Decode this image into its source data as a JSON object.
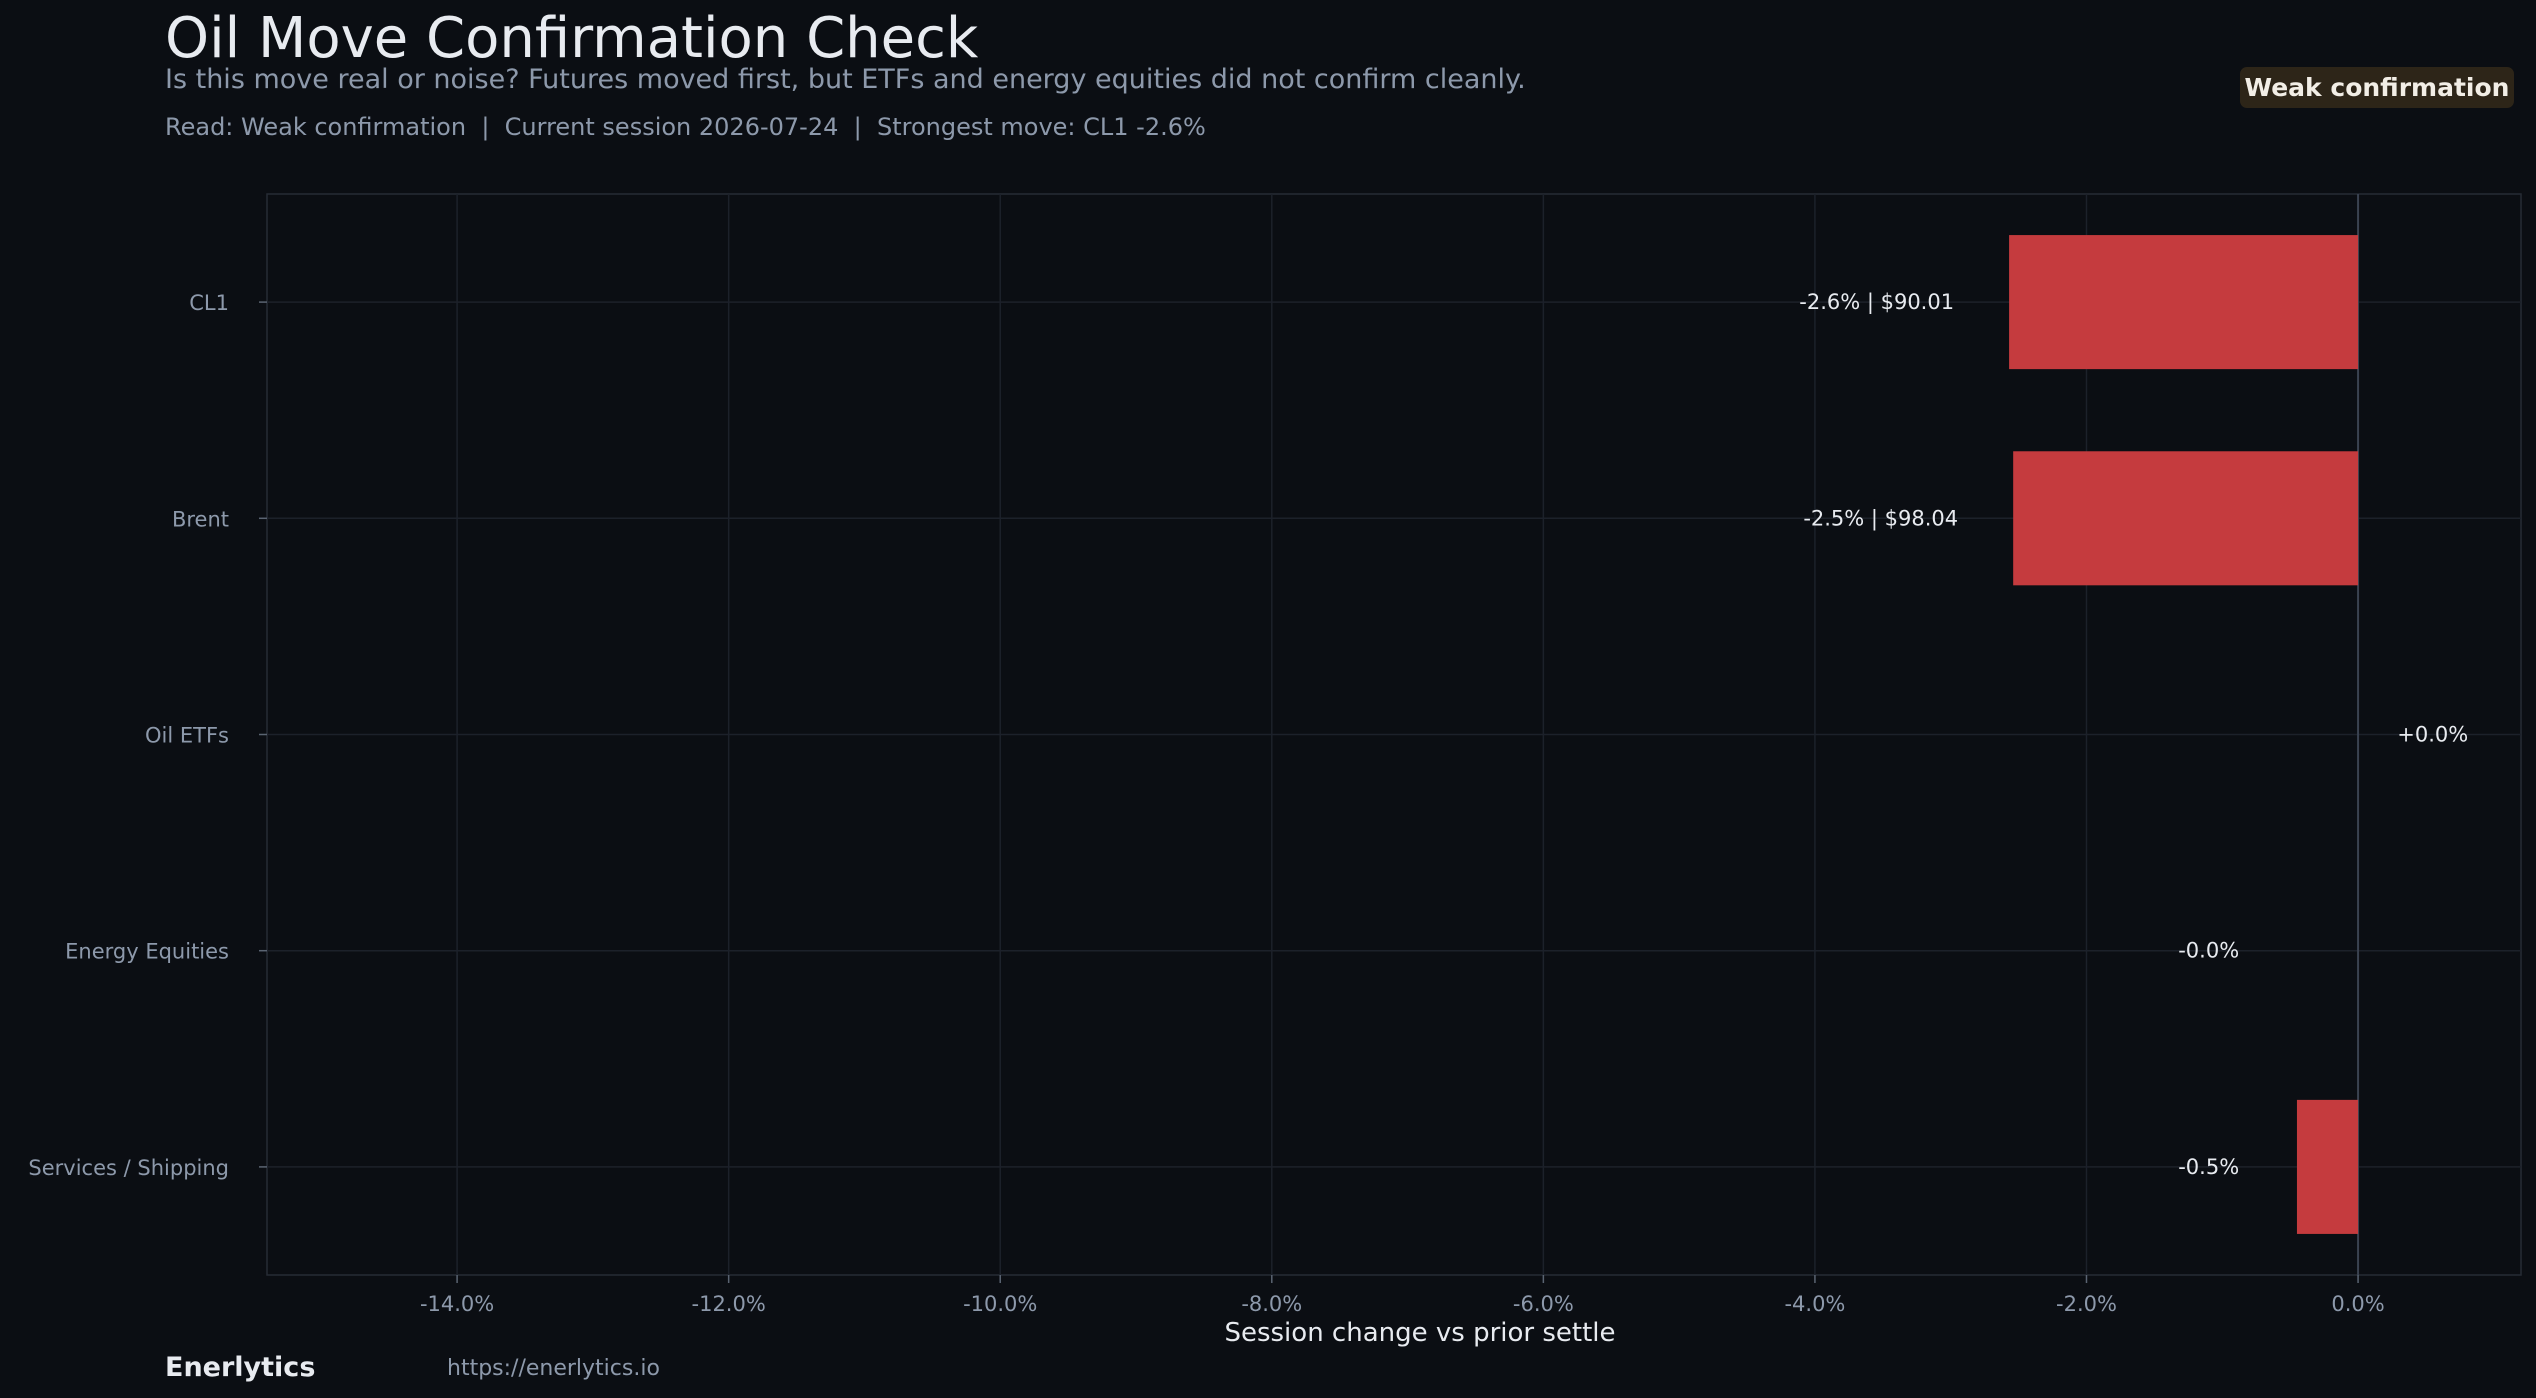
{
  "header": {
    "title": "Oil Move Confirmation Check",
    "subtitle": "Is this move real or noise? Futures moved first, but ETFs and energy equities did not confirm cleanly.",
    "readline": "Read: Weak confirmation  |  Current session 2026-07-24  |  Strongest move: CL1 -2.6%",
    "badge": "Weak confirmation"
  },
  "footer": {
    "brand": "Enerlytics",
    "url": "https://enerlytics.io"
  },
  "colors": {
    "background": "#0b0e13",
    "negative_bar": "#c53b3e",
    "badge_bg": "#2d2518"
  },
  "chart_data": {
    "type": "bar",
    "orientation": "horizontal",
    "xlabel": "Session change vs prior settle",
    "xlim": [
      -15.4,
      1.2
    ],
    "xticks": [
      -14,
      -12,
      -10,
      -8,
      -6,
      -4,
      -2,
      0
    ],
    "xtick_labels": [
      "-14.0%",
      "-12.0%",
      "-10.0%",
      "-8.0%",
      "-6.0%",
      "-4.0%",
      "-2.0%",
      "0.0%"
    ],
    "grid": true,
    "categories": [
      "CL1",
      "Brent",
      "Oil ETFs",
      "Energy Equities",
      "Services / Shipping"
    ],
    "values": [
      -2.57,
      -2.54,
      0.0,
      -0.0,
      -0.45
    ],
    "data_labels": [
      "-2.6% | $90.01",
      "-2.5% | $98.04",
      "+0.0%",
      "-0.0%",
      "-0.5%"
    ]
  }
}
